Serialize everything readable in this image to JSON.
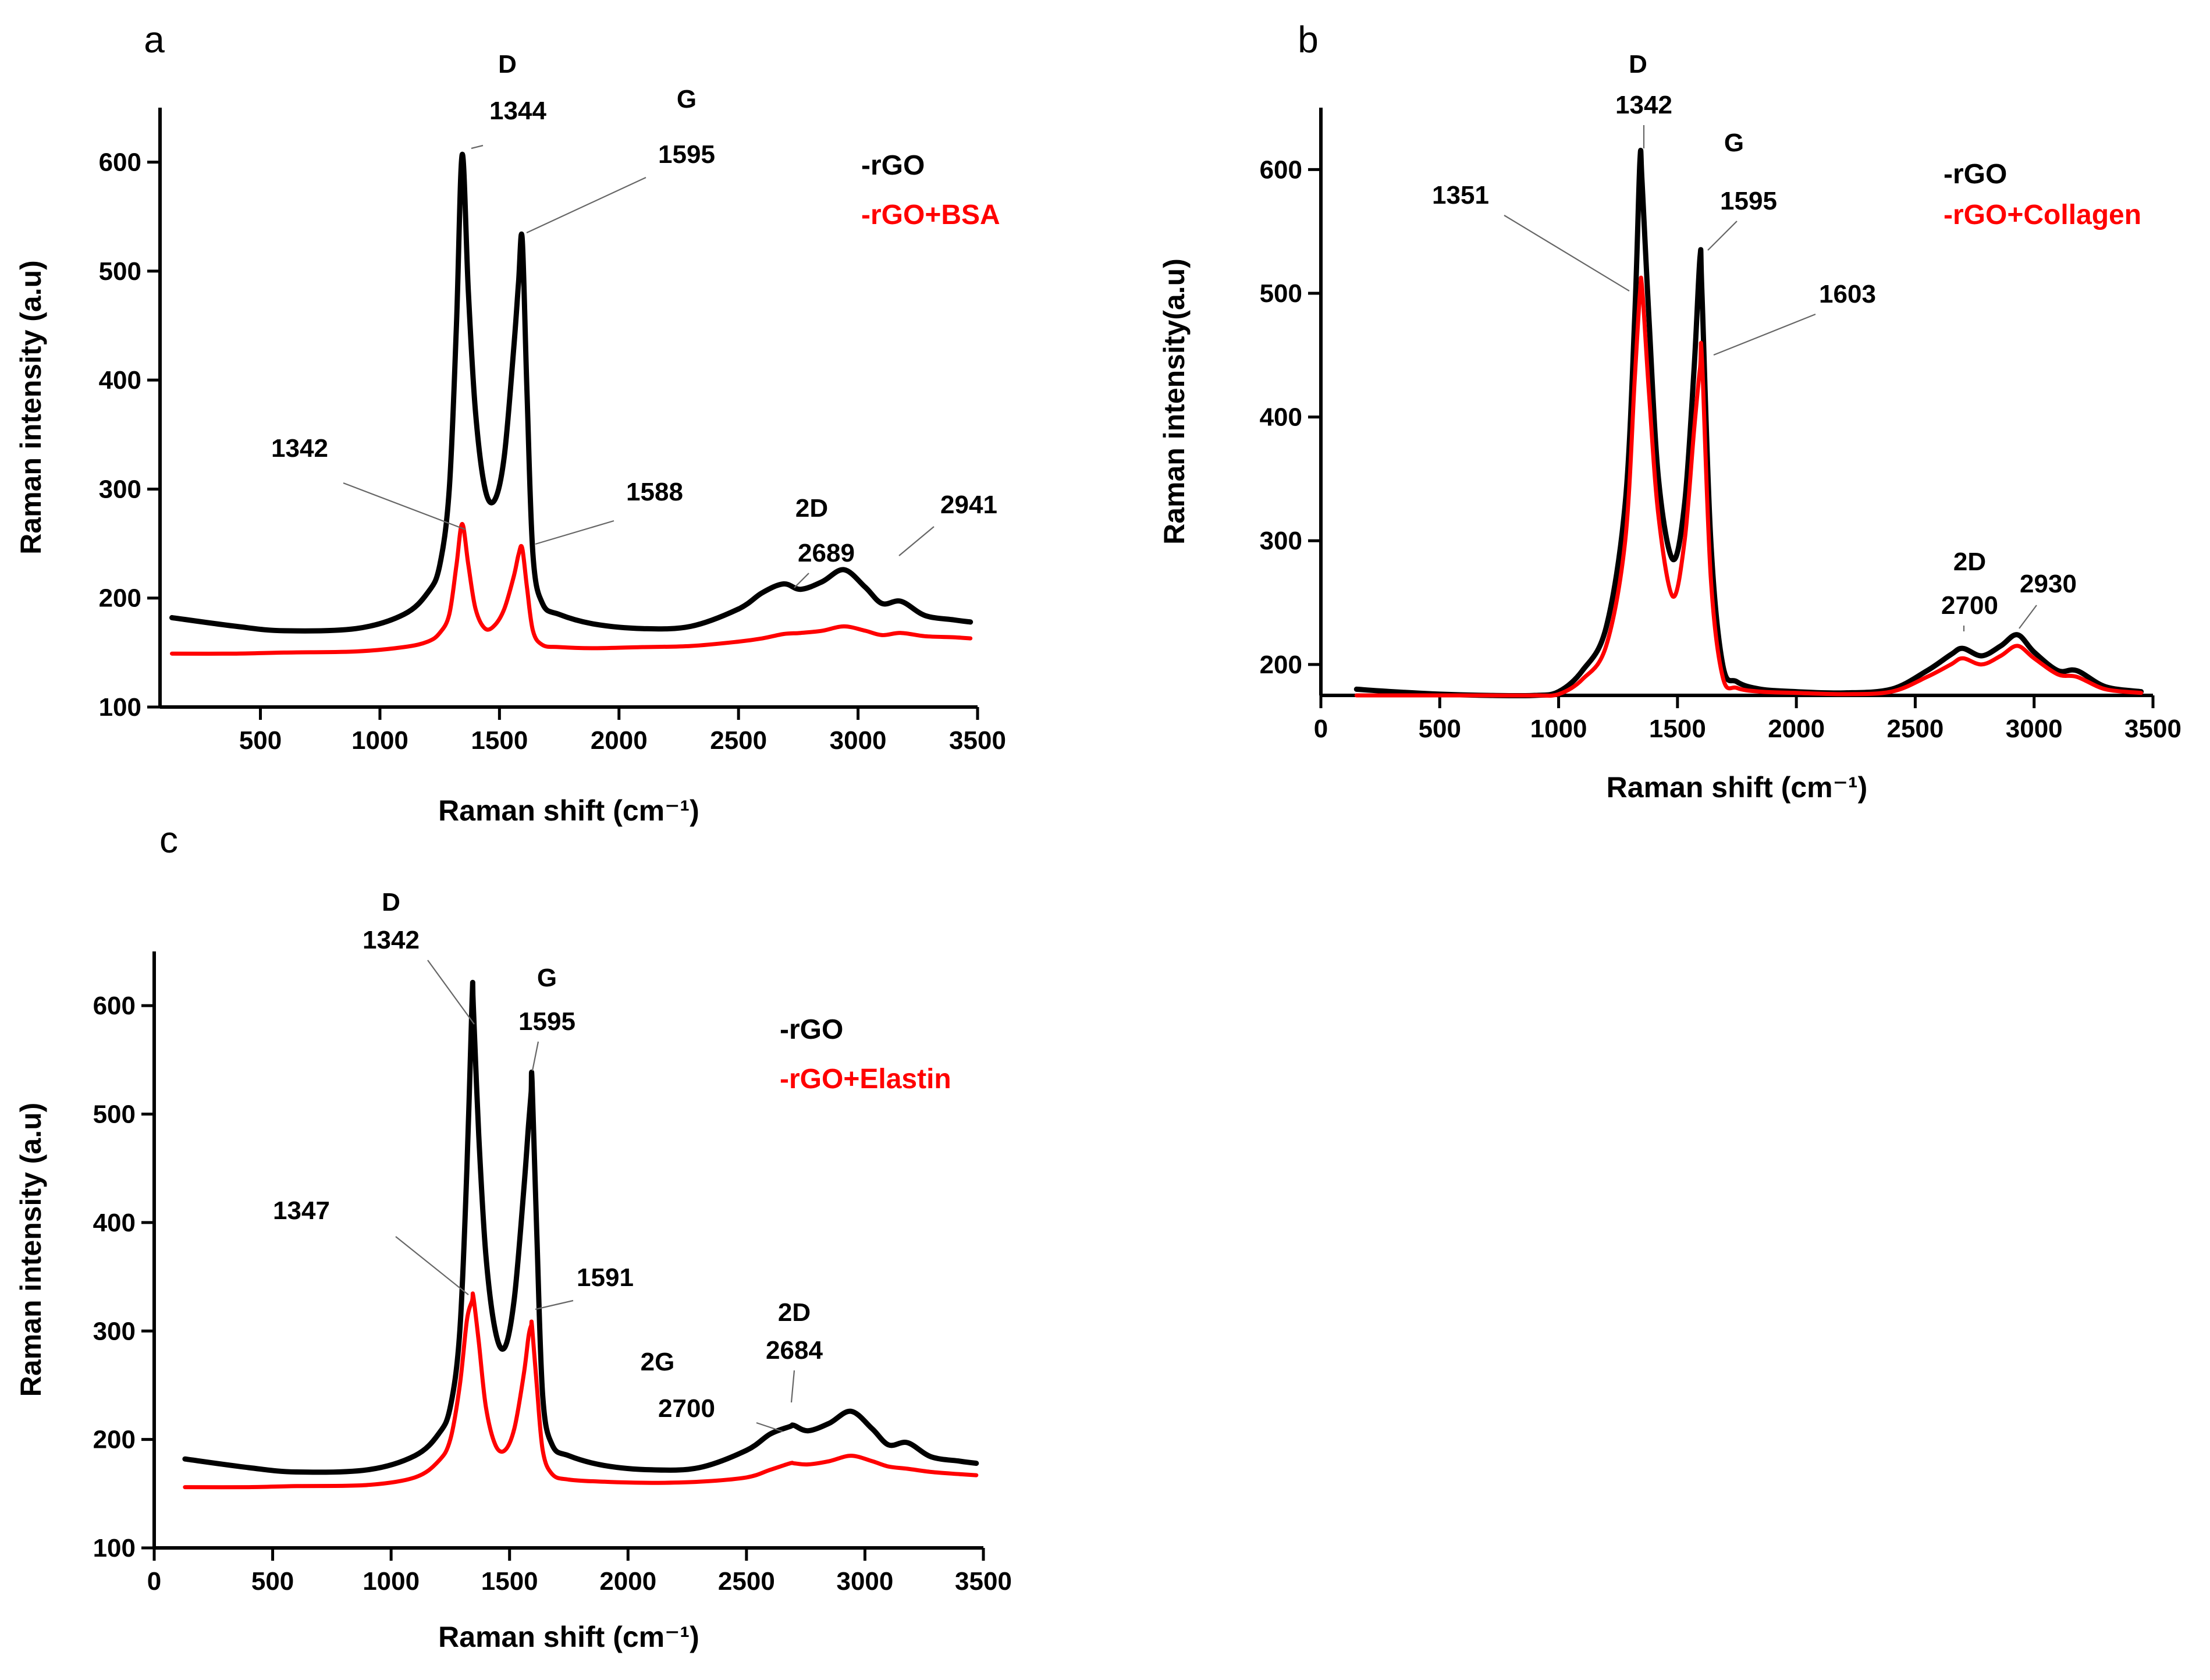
{
  "colors": {
    "rgo": "#000000",
    "composite": "#ff0000"
  },
  "chart_data": [
    {
      "panel": "a",
      "type": "line",
      "xlabel": "Raman shift (cm⁻¹)",
      "ylabel": "Raman intensity (a.u)",
      "xlim": [
        80,
        3500
      ],
      "ylim": [
        100,
        650
      ],
      "xticks": [
        500,
        1000,
        1500,
        2000,
        2500,
        3000,
        3500
      ],
      "yticks": [
        100,
        200,
        300,
        400,
        500,
        600
      ],
      "x": [
        130,
        400,
        600,
        900,
        1100,
        1200,
        1250,
        1290,
        1320,
        1344,
        1370,
        1400,
        1440,
        1480,
        1520,
        1560,
        1580,
        1595,
        1615,
        1640,
        1680,
        1750,
        1900,
        2100,
        2300,
        2500,
        2600,
        2689,
        2760,
        2850,
        2941,
        3030,
        3100,
        3180,
        3280,
        3400,
        3470
      ],
      "series": [
        {
          "name": "-rGO",
          "color": "#000000",
          "values": [
            182,
            174,
            170,
            172,
            185,
            205,
            230,
            300,
            450,
            607,
            480,
            370,
            300,
            290,
            330,
            430,
            490,
            530,
            390,
            240,
            195,
            185,
            176,
            172,
            174,
            190,
            205,
            213,
            208,
            215,
            226,
            210,
            195,
            197,
            184,
            180,
            178
          ]
        },
        {
          "name": "-rGO+BSA",
          "color": "#ff0000",
          "values": [
            149,
            149,
            150,
            151,
            155,
            160,
            168,
            185,
            230,
            268,
            230,
            190,
            172,
            175,
            190,
            220,
            240,
            246,
            210,
            170,
            157,
            155,
            154,
            155,
            156,
            160,
            163,
            167,
            168,
            170,
            174,
            170,
            166,
            168,
            165,
            164,
            163
          ]
        }
      ],
      "annotations": [
        {
          "text": "D",
          "x": 1344,
          "y": 607
        },
        {
          "text": "1344",
          "x": 1344,
          "y": 607
        },
        {
          "text": "G",
          "x": 1595,
          "y": 530
        },
        {
          "text": "1595",
          "x": 1595,
          "y": 530
        },
        {
          "text": "1342",
          "x": 1342,
          "y": 268
        },
        {
          "text": "1588",
          "x": 1588,
          "y": 246
        },
        {
          "text": "2D",
          "x": 2689,
          "y": 213
        },
        {
          "text": "2689",
          "x": 2689,
          "y": 213
        },
        {
          "text": "2941",
          "x": 2941,
          "y": 226
        }
      ],
      "legend": [
        "-rGO",
        "-rGO+BSA"
      ]
    },
    {
      "panel": "b",
      "type": "line",
      "xlabel": "Raman shift (cm⁻¹)",
      "ylabel": "Raman intensity(a.u)",
      "xlim": [
        0,
        3500
      ],
      "ylim": [
        175,
        650
      ],
      "xticks": [
        0,
        500,
        1000,
        1500,
        2000,
        2500,
        3000,
        3500
      ],
      "yticks": [
        200,
        300,
        400,
        500,
        600
      ],
      "x": [
        150,
        300,
        500,
        700,
        900,
        1000,
        1100,
        1200,
        1280,
        1320,
        1342,
        1351,
        1380,
        1420,
        1480,
        1530,
        1570,
        1595,
        1603,
        1640,
        1690,
        1750,
        1850,
        2000,
        2200,
        2400,
        2550,
        2650,
        2700,
        2780,
        2860,
        2930,
        3000,
        3100,
        3180,
        3300,
        3450
      ],
      "series": [
        {
          "name": "-rGO",
          "color": "#000000",
          "values": [
            180,
            178,
            176,
            175,
            175,
            178,
            195,
            230,
            330,
            480,
            607,
            590,
            480,
            350,
            285,
            330,
            440,
            530,
            500,
            300,
            200,
            186,
            180,
            178,
            177,
            180,
            195,
            208,
            213,
            207,
            215,
            224,
            210,
            195,
            195,
            182,
            178
          ]
        },
        {
          "name": "-rGO+Collagen",
          "color": "#ff0000",
          "values": [
            175,
            175,
            175,
            175,
            175,
            176,
            188,
            215,
            300,
            430,
            500,
            505,
            420,
            320,
            255,
            300,
            390,
            440,
            447,
            270,
            190,
            181,
            178,
            177,
            176,
            178,
            190,
            200,
            205,
            200,
            207,
            215,
            205,
            192,
            190,
            180,
            177
          ]
        }
      ],
      "annotations": [
        {
          "text": "D",
          "x": 1342,
          "y": 607
        },
        {
          "text": "1342",
          "x": 1342,
          "y": 607
        },
        {
          "text": "G",
          "x": 1595,
          "y": 530
        },
        {
          "text": "1595",
          "x": 1595,
          "y": 530
        },
        {
          "text": "1351",
          "x": 1351,
          "y": 505
        },
        {
          "text": "1603",
          "x": 1603,
          "y": 447
        },
        {
          "text": "2D",
          "x": 2700,
          "y": 213
        },
        {
          "text": "2700",
          "x": 2700,
          "y": 213
        },
        {
          "text": "2930",
          "x": 2930,
          "y": 224
        }
      ],
      "legend": [
        "-rGO",
        "-rGO+Collagen"
      ]
    },
    {
      "panel": "c",
      "type": "line",
      "xlabel": "Raman shift (cm⁻¹)",
      "ylabel": "Raman intensity (a.u)",
      "xlim": [
        0,
        3500
      ],
      "ylim": [
        100,
        650
      ],
      "xticks": [
        0,
        500,
        1000,
        1500,
        2000,
        2500,
        3000,
        3500
      ],
      "yticks": [
        100,
        200,
        300,
        400,
        500,
        600
      ],
      "x": [
        130,
        400,
        600,
        900,
        1100,
        1200,
        1250,
        1290,
        1320,
        1342,
        1347,
        1370,
        1400,
        1440,
        1480,
        1520,
        1560,
        1580,
        1591,
        1595,
        1615,
        1640,
        1680,
        1750,
        1900,
        2100,
        2300,
        2500,
        2600,
        2684,
        2700,
        2760,
        2850,
        2941,
        3030,
        3100,
        3180,
        3280,
        3400,
        3470
      ],
      "series": [
        {
          "name": "-rGO",
          "color": "#000000",
          "values": [
            182,
            174,
            170,
            172,
            185,
            205,
            230,
            300,
            450,
            607,
            600,
            480,
            370,
            300,
            285,
            330,
            430,
            490,
            520,
            530,
            390,
            240,
            195,
            185,
            176,
            172,
            174,
            190,
            205,
            212,
            213,
            208,
            215,
            226,
            210,
            195,
            197,
            184,
            180,
            178
          ]
        },
        {
          "name": "-rGO+Elastin",
          "color": "#ff0000",
          "values": [
            156,
            156,
            157,
            158,
            165,
            180,
            200,
            250,
            310,
            328,
            332,
            290,
            230,
            195,
            190,
            210,
            260,
            295,
            305,
            304,
            250,
            190,
            168,
            163,
            161,
            160,
            161,
            165,
            172,
            178,
            178,
            177,
            180,
            185,
            180,
            175,
            173,
            170,
            168,
            167
          ]
        }
      ],
      "annotations": [
        {
          "text": "D",
          "x": 1342,
          "y": 607
        },
        {
          "text": "1342",
          "x": 1342,
          "y": 607
        },
        {
          "text": "G",
          "x": 1595,
          "y": 530
        },
        {
          "text": "1595",
          "x": 1595,
          "y": 530
        },
        {
          "text": "1347",
          "x": 1347,
          "y": 332
        },
        {
          "text": "1591",
          "x": 1591,
          "y": 305
        },
        {
          "text": "2G",
          "x": 2700,
          "y": 178
        },
        {
          "text": "2700",
          "x": 2700,
          "y": 178
        },
        {
          "text": "2D",
          "x": 2684,
          "y": 212
        },
        {
          "text": "2684",
          "x": 2684,
          "y": 212
        }
      ],
      "legend": [
        "-rGO",
        "-rGO+Elastin"
      ]
    }
  ]
}
